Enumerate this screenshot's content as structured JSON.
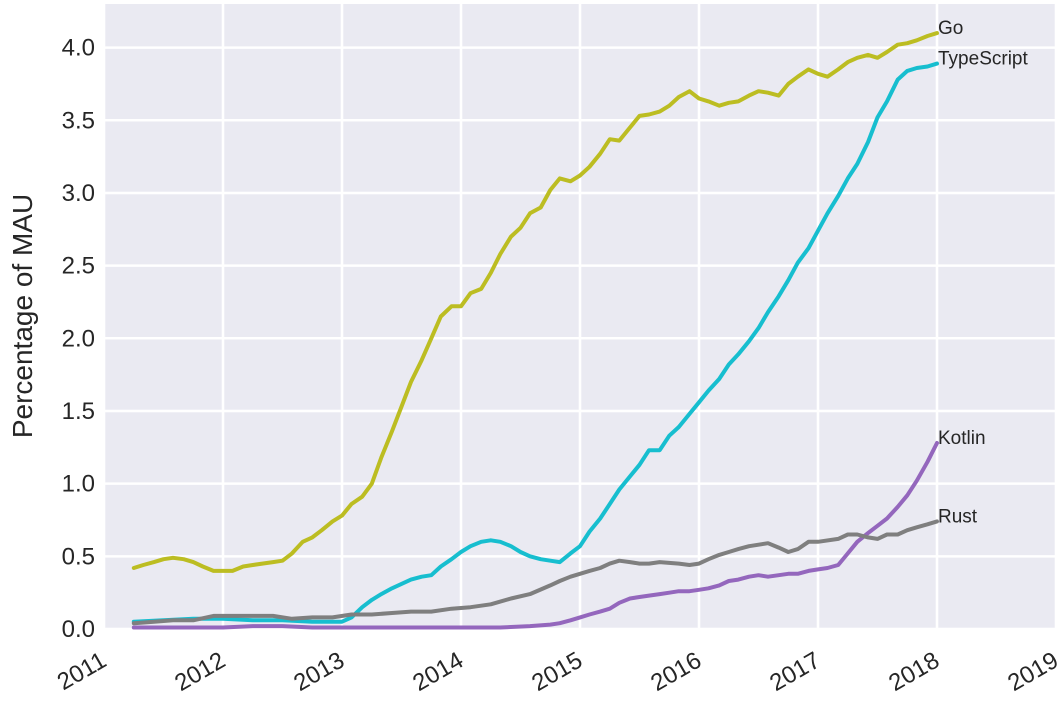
{
  "chart_data": {
    "type": "line",
    "title": "",
    "xlabel": "",
    "ylabel": "Percentage of MAU",
    "xlim": [
      2011.0,
      2019.0
    ],
    "ylim": [
      0.0,
      4.3
    ],
    "xticks": [
      "2011",
      "2012",
      "2013",
      "2014",
      "2015",
      "2016",
      "2017",
      "2018",
      "2019"
    ],
    "yticks": [
      "0.0",
      "0.5",
      "1.0",
      "1.5",
      "2.0",
      "2.5",
      "3.0",
      "3.5",
      "4.0"
    ],
    "grid": true,
    "legend": "labels at line ends",
    "series": [
      {
        "name": "Go",
        "color": "#bcbd22",
        "points": [
          [
            2011.25,
            0.42
          ],
          [
            2011.33,
            0.44
          ],
          [
            2011.42,
            0.46
          ],
          [
            2011.5,
            0.48
          ],
          [
            2011.58,
            0.49
          ],
          [
            2011.67,
            0.48
          ],
          [
            2011.75,
            0.46
          ],
          [
            2011.83,
            0.43
          ],
          [
            2011.92,
            0.4
          ],
          [
            2012.0,
            0.4
          ],
          [
            2012.08,
            0.4
          ],
          [
            2012.17,
            0.43
          ],
          [
            2012.25,
            0.44
          ],
          [
            2012.33,
            0.45
          ],
          [
            2012.42,
            0.46
          ],
          [
            2012.5,
            0.47
          ],
          [
            2012.58,
            0.52
          ],
          [
            2012.67,
            0.6
          ],
          [
            2012.75,
            0.63
          ],
          [
            2012.83,
            0.68
          ],
          [
            2012.92,
            0.74
          ],
          [
            2013.0,
            0.78
          ],
          [
            2013.08,
            0.86
          ],
          [
            2013.17,
            0.91
          ],
          [
            2013.25,
            1.0
          ],
          [
            2013.33,
            1.18
          ],
          [
            2013.42,
            1.36
          ],
          [
            2013.5,
            1.53
          ],
          [
            2013.58,
            1.7
          ],
          [
            2013.67,
            1.85
          ],
          [
            2013.75,
            2.0
          ],
          [
            2013.83,
            2.15
          ],
          [
            2013.92,
            2.22
          ],
          [
            2014.0,
            2.22
          ],
          [
            2014.08,
            2.31
          ],
          [
            2014.17,
            2.34
          ],
          [
            2014.25,
            2.45
          ],
          [
            2014.33,
            2.58
          ],
          [
            2014.42,
            2.7
          ],
          [
            2014.5,
            2.76
          ],
          [
            2014.58,
            2.86
          ],
          [
            2014.67,
            2.9
          ],
          [
            2014.75,
            3.02
          ],
          [
            2014.83,
            3.1
          ],
          [
            2014.92,
            3.08
          ],
          [
            2015.0,
            3.12
          ],
          [
            2015.08,
            3.18
          ],
          [
            2015.17,
            3.27
          ],
          [
            2015.25,
            3.37
          ],
          [
            2015.33,
            3.36
          ],
          [
            2015.42,
            3.45
          ],
          [
            2015.5,
            3.53
          ],
          [
            2015.58,
            3.54
          ],
          [
            2015.67,
            3.56
          ],
          [
            2015.75,
            3.6
          ],
          [
            2015.83,
            3.66
          ],
          [
            2015.92,
            3.7
          ],
          [
            2016.0,
            3.65
          ],
          [
            2016.08,
            3.63
          ],
          [
            2016.17,
            3.6
          ],
          [
            2016.25,
            3.62
          ],
          [
            2016.33,
            3.63
          ],
          [
            2016.42,
            3.67
          ],
          [
            2016.5,
            3.7
          ],
          [
            2016.58,
            3.69
          ],
          [
            2016.67,
            3.67
          ],
          [
            2016.75,
            3.75
          ],
          [
            2016.83,
            3.8
          ],
          [
            2016.92,
            3.85
          ],
          [
            2017.0,
            3.82
          ],
          [
            2017.08,
            3.8
          ],
          [
            2017.17,
            3.85
          ],
          [
            2017.25,
            3.9
          ],
          [
            2017.33,
            3.93
          ],
          [
            2017.42,
            3.95
          ],
          [
            2017.5,
            3.93
          ],
          [
            2017.58,
            3.97
          ],
          [
            2017.67,
            4.02
          ],
          [
            2017.75,
            4.03
          ],
          [
            2017.83,
            4.05
          ],
          [
            2017.92,
            4.08
          ],
          [
            2018.0,
            4.1
          ]
        ]
      },
      {
        "name": "TypeScript",
        "color": "#17becf",
        "points": [
          [
            2011.25,
            0.05
          ],
          [
            2011.5,
            0.06
          ],
          [
            2011.75,
            0.07
          ],
          [
            2012.0,
            0.07
          ],
          [
            2012.25,
            0.06
          ],
          [
            2012.5,
            0.06
          ],
          [
            2012.75,
            0.05
          ],
          [
            2013.0,
            0.05
          ],
          [
            2013.08,
            0.08
          ],
          [
            2013.17,
            0.15
          ],
          [
            2013.25,
            0.2
          ],
          [
            2013.33,
            0.24
          ],
          [
            2013.42,
            0.28
          ],
          [
            2013.5,
            0.31
          ],
          [
            2013.58,
            0.34
          ],
          [
            2013.67,
            0.36
          ],
          [
            2013.75,
            0.37
          ],
          [
            2013.83,
            0.43
          ],
          [
            2013.92,
            0.48
          ],
          [
            2014.0,
            0.53
          ],
          [
            2014.08,
            0.57
          ],
          [
            2014.17,
            0.6
          ],
          [
            2014.25,
            0.61
          ],
          [
            2014.33,
            0.6
          ],
          [
            2014.42,
            0.57
          ],
          [
            2014.5,
            0.53
          ],
          [
            2014.58,
            0.5
          ],
          [
            2014.67,
            0.48
          ],
          [
            2014.75,
            0.47
          ],
          [
            2014.83,
            0.46
          ],
          [
            2014.92,
            0.52
          ],
          [
            2015.0,
            0.57
          ],
          [
            2015.08,
            0.67
          ],
          [
            2015.17,
            0.76
          ],
          [
            2015.25,
            0.86
          ],
          [
            2015.33,
            0.96
          ],
          [
            2015.42,
            1.05
          ],
          [
            2015.5,
            1.13
          ],
          [
            2015.58,
            1.23
          ],
          [
            2015.67,
            1.23
          ],
          [
            2015.75,
            1.33
          ],
          [
            2015.83,
            1.39
          ],
          [
            2015.92,
            1.48
          ],
          [
            2016.0,
            1.56
          ],
          [
            2016.08,
            1.64
          ],
          [
            2016.17,
            1.72
          ],
          [
            2016.25,
            1.82
          ],
          [
            2016.33,
            1.89
          ],
          [
            2016.42,
            1.98
          ],
          [
            2016.5,
            2.07
          ],
          [
            2016.58,
            2.18
          ],
          [
            2016.67,
            2.29
          ],
          [
            2016.75,
            2.4
          ],
          [
            2016.83,
            2.52
          ],
          [
            2016.92,
            2.62
          ],
          [
            2017.0,
            2.74
          ],
          [
            2017.08,
            2.86
          ],
          [
            2017.17,
            2.98
          ],
          [
            2017.25,
            3.1
          ],
          [
            2017.33,
            3.2
          ],
          [
            2017.42,
            3.35
          ],
          [
            2017.5,
            3.52
          ],
          [
            2017.58,
            3.63
          ],
          [
            2017.67,
            3.78
          ],
          [
            2017.75,
            3.84
          ],
          [
            2017.83,
            3.86
          ],
          [
            2017.92,
            3.87
          ],
          [
            2018.0,
            3.89
          ]
        ]
      },
      {
        "name": "Kotlin",
        "color": "#9467bd",
        "points": [
          [
            2011.25,
            0.01
          ],
          [
            2011.5,
            0.01
          ],
          [
            2011.75,
            0.01
          ],
          [
            2012.0,
            0.01
          ],
          [
            2012.25,
            0.02
          ],
          [
            2012.5,
            0.02
          ],
          [
            2012.75,
            0.01
          ],
          [
            2013.0,
            0.01
          ],
          [
            2013.5,
            0.01
          ],
          [
            2014.0,
            0.01
          ],
          [
            2014.33,
            0.01
          ],
          [
            2014.58,
            0.02
          ],
          [
            2014.75,
            0.03
          ],
          [
            2014.83,
            0.04
          ],
          [
            2014.92,
            0.06
          ],
          [
            2015.0,
            0.08
          ],
          [
            2015.08,
            0.1
          ],
          [
            2015.17,
            0.12
          ],
          [
            2015.25,
            0.14
          ],
          [
            2015.33,
            0.18
          ],
          [
            2015.42,
            0.21
          ],
          [
            2015.5,
            0.22
          ],
          [
            2015.58,
            0.23
          ],
          [
            2015.67,
            0.24
          ],
          [
            2015.75,
            0.25
          ],
          [
            2015.83,
            0.26
          ],
          [
            2015.92,
            0.26
          ],
          [
            2016.0,
            0.27
          ],
          [
            2016.08,
            0.28
          ],
          [
            2016.17,
            0.3
          ],
          [
            2016.25,
            0.33
          ],
          [
            2016.33,
            0.34
          ],
          [
            2016.42,
            0.36
          ],
          [
            2016.5,
            0.37
          ],
          [
            2016.58,
            0.36
          ],
          [
            2016.67,
            0.37
          ],
          [
            2016.75,
            0.38
          ],
          [
            2016.83,
            0.38
          ],
          [
            2016.92,
            0.4
          ],
          [
            2017.0,
            0.41
          ],
          [
            2017.08,
            0.42
          ],
          [
            2017.17,
            0.44
          ],
          [
            2017.25,
            0.52
          ],
          [
            2017.33,
            0.6
          ],
          [
            2017.42,
            0.66
          ],
          [
            2017.5,
            0.71
          ],
          [
            2017.58,
            0.76
          ],
          [
            2017.67,
            0.84
          ],
          [
            2017.75,
            0.92
          ],
          [
            2017.83,
            1.02
          ],
          [
            2017.92,
            1.15
          ],
          [
            2018.0,
            1.28
          ]
        ]
      },
      {
        "name": "Rust",
        "color": "#7f7f7f",
        "points": [
          [
            2011.25,
            0.04
          ],
          [
            2011.42,
            0.05
          ],
          [
            2011.58,
            0.06
          ],
          [
            2011.75,
            0.06
          ],
          [
            2011.92,
            0.09
          ],
          [
            2012.08,
            0.09
          ],
          [
            2012.25,
            0.09
          ],
          [
            2012.42,
            0.09
          ],
          [
            2012.58,
            0.07
          ],
          [
            2012.75,
            0.08
          ],
          [
            2012.92,
            0.08
          ],
          [
            2013.08,
            0.1
          ],
          [
            2013.25,
            0.1
          ],
          [
            2013.42,
            0.11
          ],
          [
            2013.58,
            0.12
          ],
          [
            2013.75,
            0.12
          ],
          [
            2013.92,
            0.14
          ],
          [
            2014.08,
            0.15
          ],
          [
            2014.25,
            0.17
          ],
          [
            2014.42,
            0.21
          ],
          [
            2014.58,
            0.24
          ],
          [
            2014.75,
            0.3
          ],
          [
            2014.83,
            0.33
          ],
          [
            2014.92,
            0.36
          ],
          [
            2015.08,
            0.4
          ],
          [
            2015.17,
            0.42
          ],
          [
            2015.25,
            0.45
          ],
          [
            2015.33,
            0.47
          ],
          [
            2015.42,
            0.46
          ],
          [
            2015.5,
            0.45
          ],
          [
            2015.58,
            0.45
          ],
          [
            2015.67,
            0.46
          ],
          [
            2015.83,
            0.45
          ],
          [
            2015.92,
            0.44
          ],
          [
            2016.0,
            0.45
          ],
          [
            2016.08,
            0.48
          ],
          [
            2016.17,
            0.51
          ],
          [
            2016.25,
            0.53
          ],
          [
            2016.33,
            0.55
          ],
          [
            2016.42,
            0.57
          ],
          [
            2016.58,
            0.59
          ],
          [
            2016.67,
            0.56
          ],
          [
            2016.75,
            0.53
          ],
          [
            2016.83,
            0.55
          ],
          [
            2016.92,
            0.6
          ],
          [
            2017.0,
            0.6
          ],
          [
            2017.17,
            0.62
          ],
          [
            2017.25,
            0.65
          ],
          [
            2017.33,
            0.65
          ],
          [
            2017.42,
            0.63
          ],
          [
            2017.5,
            0.62
          ],
          [
            2017.58,
            0.65
          ],
          [
            2017.67,
            0.65
          ],
          [
            2017.75,
            0.68
          ],
          [
            2017.83,
            0.7
          ],
          [
            2017.92,
            0.72
          ],
          [
            2018.0,
            0.74
          ]
        ]
      }
    ]
  }
}
